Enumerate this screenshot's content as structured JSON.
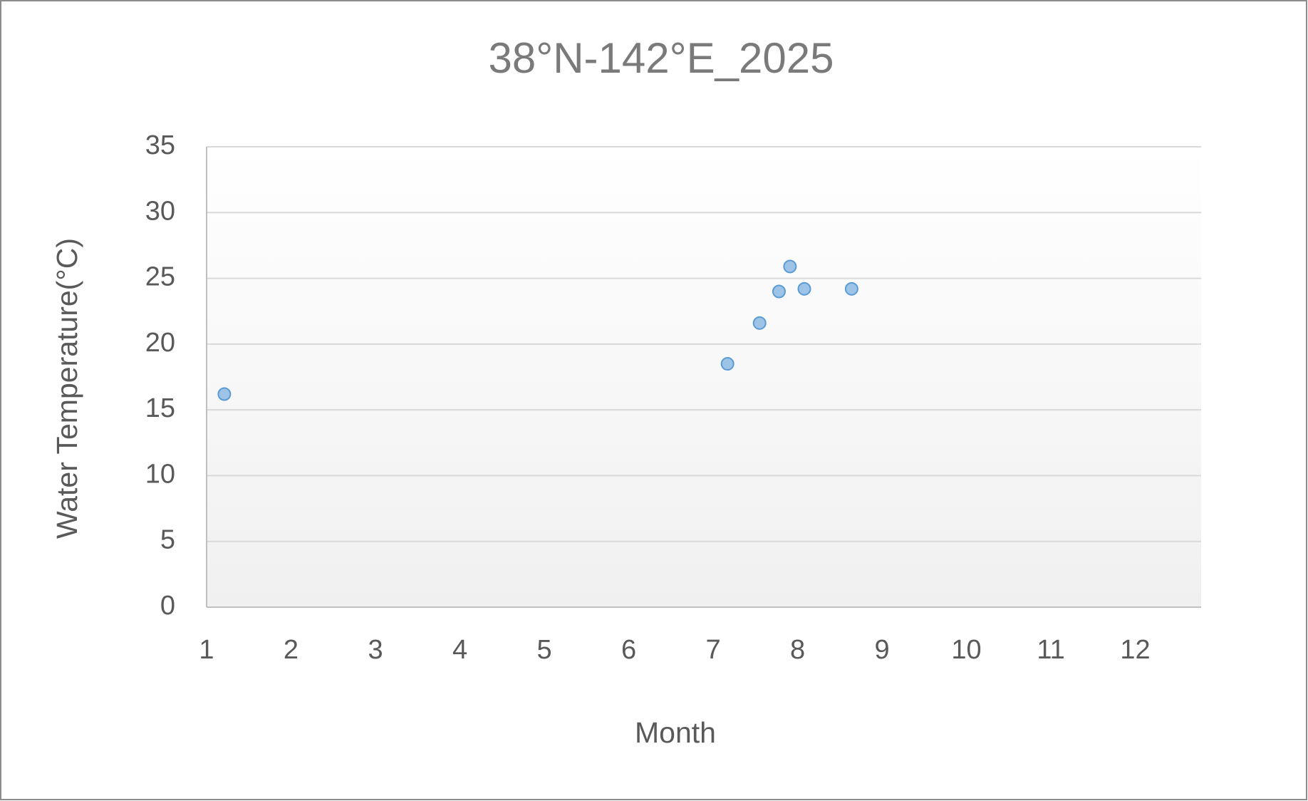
{
  "chart_data": {
    "type": "scatter",
    "title": "38°N-142°E_2025",
    "x_label": "Month",
    "y_label": "Water Temperature(°C)",
    "series": [
      {
        "name": "Water Temperature",
        "color": "#9dc3e6",
        "edge_color": "#5b9bd5",
        "x": [
          1.21,
          7.17,
          7.55,
          7.78,
          7.91,
          8.08,
          8.64
        ],
        "values": [
          16.2,
          18.5,
          21.6,
          24.0,
          25.9,
          24.2,
          24.2
        ]
      }
    ],
    "xlim": [
      1,
      12.78
    ],
    "xticks": [
      1,
      2,
      3,
      4,
      5,
      6,
      7,
      8,
      9,
      10,
      11,
      12
    ],
    "ylim": [
      0,
      35
    ],
    "yticks": [
      0,
      5,
      10,
      15,
      20,
      25,
      30,
      35
    ],
    "grid": true
  }
}
